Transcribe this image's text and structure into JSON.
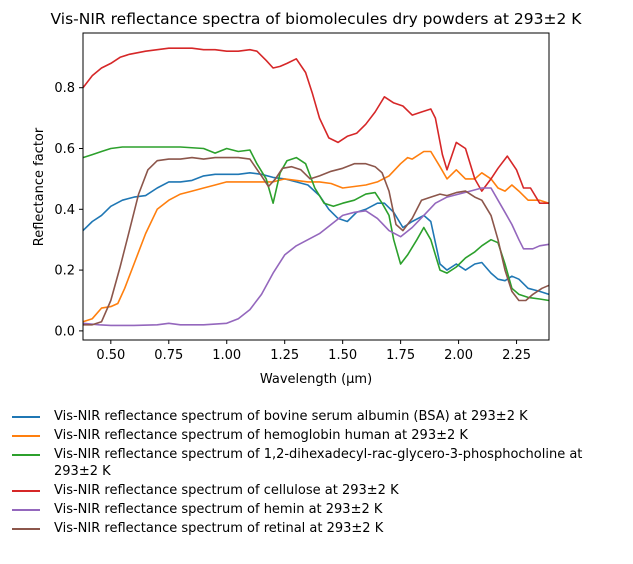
{
  "chart_data": {
    "type": "line",
    "title": "Vis-NIR reflectance spectra of biomolecules dry powders at 293±2 K",
    "xlabel": "Wavelength (μm)",
    "ylabel": "Reflectance factor",
    "xlim": [
      0.38,
      2.39
    ],
    "ylim": [
      -0.03,
      0.98
    ],
    "xticks": [
      0.5,
      0.75,
      1.0,
      1.25,
      1.5,
      1.75,
      2.0,
      2.25
    ],
    "xtick_labels": [
      "0.50",
      "0.75",
      "1.00",
      "1.25",
      "1.50",
      "1.75",
      "2.00",
      "2.25"
    ],
    "yticks": [
      0.0,
      0.2,
      0.4,
      0.6,
      0.8
    ],
    "ytick_labels": [
      "0.0",
      "0.2",
      "0.4",
      "0.6",
      "0.8"
    ],
    "grid": false,
    "legend_position": "below",
    "series": [
      {
        "name": "Vis-NIR reflectance spectrum of bovine serum albumin (BSA) at 293±2 K",
        "color": "#1f77b4",
        "points": [
          [
            0.38,
            0.33
          ],
          [
            0.42,
            0.36
          ],
          [
            0.46,
            0.38
          ],
          [
            0.5,
            0.41
          ],
          [
            0.55,
            0.43
          ],
          [
            0.6,
            0.44
          ],
          [
            0.65,
            0.445
          ],
          [
            0.7,
            0.47
          ],
          [
            0.75,
            0.49
          ],
          [
            0.8,
            0.49
          ],
          [
            0.85,
            0.495
          ],
          [
            0.9,
            0.51
          ],
          [
            0.95,
            0.515
          ],
          [
            1.0,
            0.515
          ],
          [
            1.05,
            0.515
          ],
          [
            1.1,
            0.52
          ],
          [
            1.15,
            0.515
          ],
          [
            1.2,
            0.505
          ],
          [
            1.25,
            0.5
          ],
          [
            1.3,
            0.49
          ],
          [
            1.35,
            0.48
          ],
          [
            1.4,
            0.445
          ],
          [
            1.44,
            0.4
          ],
          [
            1.48,
            0.37
          ],
          [
            1.52,
            0.36
          ],
          [
            1.56,
            0.39
          ],
          [
            1.6,
            0.4
          ],
          [
            1.65,
            0.42
          ],
          [
            1.68,
            0.42
          ],
          [
            1.72,
            0.39
          ],
          [
            1.76,
            0.34
          ],
          [
            1.8,
            0.36
          ],
          [
            1.85,
            0.38
          ],
          [
            1.88,
            0.36
          ],
          [
            1.92,
            0.22
          ],
          [
            1.95,
            0.2
          ],
          [
            1.99,
            0.22
          ],
          [
            2.03,
            0.2
          ],
          [
            2.07,
            0.22
          ],
          [
            2.1,
            0.225
          ],
          [
            2.14,
            0.19
          ],
          [
            2.17,
            0.17
          ],
          [
            2.2,
            0.165
          ],
          [
            2.23,
            0.18
          ],
          [
            2.26,
            0.17
          ],
          [
            2.3,
            0.14
          ],
          [
            2.35,
            0.13
          ],
          [
            2.39,
            0.12
          ]
        ]
      },
      {
        "name": "Vis-NIR reflectance spectrum of hemoglobin human at 293±2 K",
        "color": "#ff7f0e",
        "points": [
          [
            0.38,
            0.03
          ],
          [
            0.42,
            0.04
          ],
          [
            0.46,
            0.075
          ],
          [
            0.5,
            0.08
          ],
          [
            0.53,
            0.09
          ],
          [
            0.56,
            0.14
          ],
          [
            0.6,
            0.22
          ],
          [
            0.65,
            0.32
          ],
          [
            0.7,
            0.4
          ],
          [
            0.75,
            0.43
          ],
          [
            0.8,
            0.45
          ],
          [
            0.85,
            0.46
          ],
          [
            0.9,
            0.47
          ],
          [
            0.95,
            0.48
          ],
          [
            1.0,
            0.49
          ],
          [
            1.05,
            0.49
          ],
          [
            1.1,
            0.49
          ],
          [
            1.15,
            0.49
          ],
          [
            1.2,
            0.49
          ],
          [
            1.25,
            0.5
          ],
          [
            1.3,
            0.495
          ],
          [
            1.35,
            0.49
          ],
          [
            1.4,
            0.49
          ],
          [
            1.45,
            0.485
          ],
          [
            1.5,
            0.47
          ],
          [
            1.55,
            0.475
          ],
          [
            1.6,
            0.48
          ],
          [
            1.65,
            0.49
          ],
          [
            1.7,
            0.51
          ],
          [
            1.75,
            0.55
          ],
          [
            1.78,
            0.57
          ],
          [
            1.8,
            0.565
          ],
          [
            1.85,
            0.59
          ],
          [
            1.88,
            0.59
          ],
          [
            1.92,
            0.54
          ],
          [
            1.95,
            0.5
          ],
          [
            1.99,
            0.53
          ],
          [
            2.03,
            0.5
          ],
          [
            2.07,
            0.5
          ],
          [
            2.1,
            0.52
          ],
          [
            2.14,
            0.5
          ],
          [
            2.17,
            0.47
          ],
          [
            2.2,
            0.46
          ],
          [
            2.23,
            0.48
          ],
          [
            2.26,
            0.46
          ],
          [
            2.3,
            0.43
          ],
          [
            2.35,
            0.43
          ],
          [
            2.39,
            0.42
          ]
        ]
      },
      {
        "name": "Vis-NIR reflectance spectrum of 1,2-dihexadecyl-rac-glycero-3-phosphocholine at 293±2 K",
        "color": "#2ca02c",
        "points": [
          [
            0.38,
            0.57
          ],
          [
            0.42,
            0.58
          ],
          [
            0.46,
            0.59
          ],
          [
            0.5,
            0.6
          ],
          [
            0.55,
            0.605
          ],
          [
            0.6,
            0.605
          ],
          [
            0.7,
            0.605
          ],
          [
            0.8,
            0.605
          ],
          [
            0.9,
            0.6
          ],
          [
            0.95,
            0.585
          ],
          [
            1.0,
            0.6
          ],
          [
            1.05,
            0.59
          ],
          [
            1.1,
            0.595
          ],
          [
            1.13,
            0.55
          ],
          [
            1.17,
            0.5
          ],
          [
            1.2,
            0.42
          ],
          [
            1.23,
            0.52
          ],
          [
            1.26,
            0.56
          ],
          [
            1.3,
            0.57
          ],
          [
            1.34,
            0.55
          ],
          [
            1.38,
            0.47
          ],
          [
            1.42,
            0.42
          ],
          [
            1.46,
            0.41
          ],
          [
            1.5,
            0.42
          ],
          [
            1.55,
            0.43
          ],
          [
            1.6,
            0.45
          ],
          [
            1.64,
            0.455
          ],
          [
            1.67,
            0.42
          ],
          [
            1.7,
            0.38
          ],
          [
            1.72,
            0.3
          ],
          [
            1.75,
            0.22
          ],
          [
            1.78,
            0.25
          ],
          [
            1.82,
            0.3
          ],
          [
            1.85,
            0.34
          ],
          [
            1.88,
            0.3
          ],
          [
            1.92,
            0.2
          ],
          [
            1.95,
            0.19
          ],
          [
            1.99,
            0.21
          ],
          [
            2.03,
            0.24
          ],
          [
            2.07,
            0.26
          ],
          [
            2.1,
            0.28
          ],
          [
            2.14,
            0.3
          ],
          [
            2.17,
            0.29
          ],
          [
            2.2,
            0.22
          ],
          [
            2.23,
            0.14
          ],
          [
            2.26,
            0.12
          ],
          [
            2.3,
            0.11
          ],
          [
            2.35,
            0.105
          ],
          [
            2.39,
            0.1
          ]
        ]
      },
      {
        "name": "Vis-NIR reflectance spectrum of cellulose at 293±2 K",
        "color": "#d62728",
        "points": [
          [
            0.38,
            0.8
          ],
          [
            0.42,
            0.84
          ],
          [
            0.46,
            0.865
          ],
          [
            0.5,
            0.88
          ],
          [
            0.54,
            0.9
          ],
          [
            0.58,
            0.91
          ],
          [
            0.65,
            0.92
          ],
          [
            0.7,
            0.925
          ],
          [
            0.75,
            0.93
          ],
          [
            0.8,
            0.93
          ],
          [
            0.85,
            0.93
          ],
          [
            0.9,
            0.925
          ],
          [
            0.95,
            0.925
          ],
          [
            1.0,
            0.92
          ],
          [
            1.05,
            0.92
          ],
          [
            1.1,
            0.925
          ],
          [
            1.13,
            0.92
          ],
          [
            1.17,
            0.89
          ],
          [
            1.2,
            0.865
          ],
          [
            1.23,
            0.87
          ],
          [
            1.26,
            0.88
          ],
          [
            1.3,
            0.895
          ],
          [
            1.34,
            0.85
          ],
          [
            1.37,
            0.78
          ],
          [
            1.4,
            0.7
          ],
          [
            1.44,
            0.635
          ],
          [
            1.48,
            0.62
          ],
          [
            1.52,
            0.64
          ],
          [
            1.56,
            0.65
          ],
          [
            1.6,
            0.68
          ],
          [
            1.64,
            0.72
          ],
          [
            1.68,
            0.77
          ],
          [
            1.72,
            0.75
          ],
          [
            1.76,
            0.74
          ],
          [
            1.8,
            0.71
          ],
          [
            1.84,
            0.72
          ],
          [
            1.88,
            0.73
          ],
          [
            1.9,
            0.7
          ],
          [
            1.93,
            0.58
          ],
          [
            1.95,
            0.53
          ],
          [
            1.99,
            0.62
          ],
          [
            2.03,
            0.6
          ],
          [
            2.07,
            0.5
          ],
          [
            2.1,
            0.46
          ],
          [
            2.14,
            0.5
          ],
          [
            2.17,
            0.535
          ],
          [
            2.21,
            0.575
          ],
          [
            2.25,
            0.53
          ],
          [
            2.28,
            0.47
          ],
          [
            2.31,
            0.47
          ],
          [
            2.35,
            0.42
          ],
          [
            2.39,
            0.42
          ]
        ]
      },
      {
        "name": "Vis-NIR reflectance spectrum of hemin at 293±2 K",
        "color": "#9467bd",
        "points": [
          [
            0.38,
            0.025
          ],
          [
            0.45,
            0.02
          ],
          [
            0.5,
            0.018
          ],
          [
            0.6,
            0.018
          ],
          [
            0.7,
            0.02
          ],
          [
            0.75,
            0.025
          ],
          [
            0.8,
            0.02
          ],
          [
            0.9,
            0.02
          ],
          [
            1.0,
            0.025
          ],
          [
            1.05,
            0.04
          ],
          [
            1.1,
            0.07
          ],
          [
            1.15,
            0.12
          ],
          [
            1.2,
            0.19
          ],
          [
            1.25,
            0.25
          ],
          [
            1.3,
            0.28
          ],
          [
            1.35,
            0.3
          ],
          [
            1.4,
            0.32
          ],
          [
            1.45,
            0.35
          ],
          [
            1.5,
            0.38
          ],
          [
            1.55,
            0.39
          ],
          [
            1.6,
            0.395
          ],
          [
            1.65,
            0.37
          ],
          [
            1.7,
            0.33
          ],
          [
            1.75,
            0.31
          ],
          [
            1.8,
            0.34
          ],
          [
            1.85,
            0.38
          ],
          [
            1.9,
            0.42
          ],
          [
            1.95,
            0.44
          ],
          [
            2.0,
            0.45
          ],
          [
            2.05,
            0.46
          ],
          [
            2.1,
            0.47
          ],
          [
            2.14,
            0.47
          ],
          [
            2.17,
            0.43
          ],
          [
            2.2,
            0.39
          ],
          [
            2.23,
            0.35
          ],
          [
            2.26,
            0.3
          ],
          [
            2.28,
            0.27
          ],
          [
            2.32,
            0.27
          ],
          [
            2.35,
            0.28
          ],
          [
            2.39,
            0.285
          ]
        ]
      },
      {
        "name": "Vis-NIR reflectance spectrum of retinal at 293±2 K",
        "color": "#8c564b",
        "points": [
          [
            0.38,
            0.02
          ],
          [
            0.42,
            0.02
          ],
          [
            0.46,
            0.03
          ],
          [
            0.5,
            0.1
          ],
          [
            0.54,
            0.21
          ],
          [
            0.58,
            0.33
          ],
          [
            0.62,
            0.45
          ],
          [
            0.66,
            0.53
          ],
          [
            0.7,
            0.56
          ],
          [
            0.75,
            0.565
          ],
          [
            0.8,
            0.565
          ],
          [
            0.85,
            0.57
          ],
          [
            0.9,
            0.565
          ],
          [
            0.95,
            0.57
          ],
          [
            1.0,
            0.57
          ],
          [
            1.05,
            0.57
          ],
          [
            1.1,
            0.565
          ],
          [
            1.15,
            0.51
          ],
          [
            1.18,
            0.475
          ],
          [
            1.21,
            0.5
          ],
          [
            1.24,
            0.535
          ],
          [
            1.28,
            0.54
          ],
          [
            1.32,
            0.53
          ],
          [
            1.36,
            0.5
          ],
          [
            1.4,
            0.51
          ],
          [
            1.45,
            0.525
          ],
          [
            1.5,
            0.535
          ],
          [
            1.55,
            0.55
          ],
          [
            1.6,
            0.55
          ],
          [
            1.64,
            0.54
          ],
          [
            1.67,
            0.52
          ],
          [
            1.7,
            0.46
          ],
          [
            1.73,
            0.35
          ],
          [
            1.76,
            0.33
          ],
          [
            1.8,
            0.37
          ],
          [
            1.84,
            0.43
          ],
          [
            1.88,
            0.44
          ],
          [
            1.92,
            0.45
          ],
          [
            1.95,
            0.445
          ],
          [
            1.99,
            0.455
          ],
          [
            2.03,
            0.46
          ],
          [
            2.07,
            0.44
          ],
          [
            2.1,
            0.43
          ],
          [
            2.14,
            0.38
          ],
          [
            2.17,
            0.3
          ],
          [
            2.2,
            0.2
          ],
          [
            2.23,
            0.13
          ],
          [
            2.26,
            0.1
          ],
          [
            2.29,
            0.1
          ],
          [
            2.32,
            0.12
          ],
          [
            2.36,
            0.14
          ],
          [
            2.39,
            0.15
          ]
        ]
      }
    ]
  }
}
